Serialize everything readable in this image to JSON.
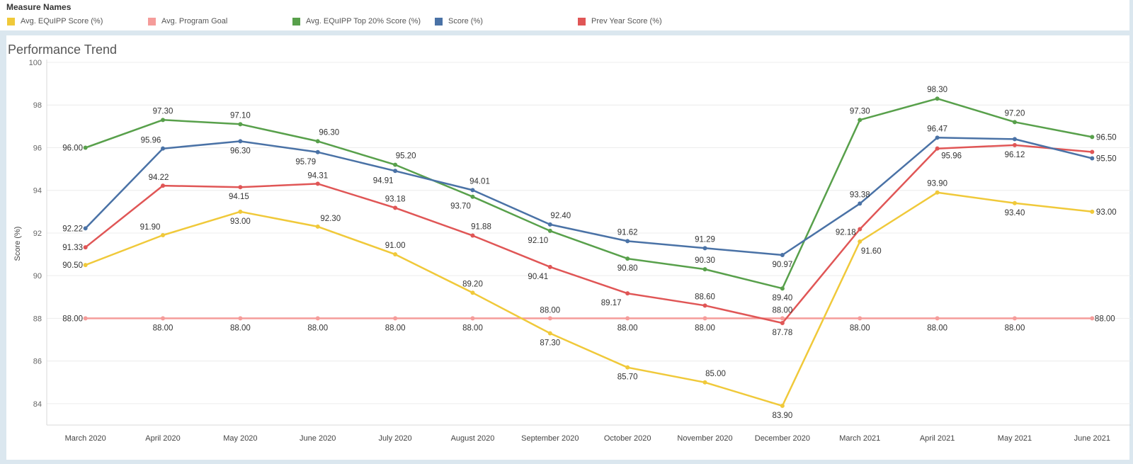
{
  "legend": {
    "title": "Measure Names",
    "items": [
      {
        "label": "Avg. EQuIPP Score (%)",
        "color": "#f0c93a"
      },
      {
        "label": "Avg. Program Goal",
        "color": "#f59c9a"
      },
      {
        "label": "Avg. EQuIPP Top 20% Score (%)",
        "color": "#58a04b"
      },
      {
        "label": "Score (%)",
        "color": "#4a72a6"
      },
      {
        "label": "Prev Year Score (%)",
        "color": "#e05656"
      }
    ]
  },
  "chart_title": "Performance Trend",
  "chart_data": {
    "type": "line",
    "title": "Performance Trend",
    "xlabel": "",
    "ylabel": "Score (%)",
    "ylim": [
      83,
      100
    ],
    "yticks": [
      84,
      86,
      88,
      90,
      92,
      94,
      96,
      98,
      100
    ],
    "grid": true,
    "legend": "top",
    "categories": [
      "March 2020",
      "April 2020",
      "May 2020",
      "June 2020",
      "July 2020",
      "August 2020",
      "September 2020",
      "October 2020",
      "November 2020",
      "December 2020",
      "March 2021",
      "April 2021",
      "May 2021",
      "June 2021"
    ],
    "series": [
      {
        "name": "Avg. Program Goal",
        "color": "#f59c9a",
        "values": [
          88.0,
          88.0,
          88.0,
          88.0,
          88.0,
          88.0,
          88.0,
          88.0,
          88.0,
          88.0,
          88.0,
          88.0,
          88.0,
          88.0
        ],
        "label_values": [
          "88.00",
          "88.00",
          "88.00",
          "88.00",
          "88.00",
          "88.00",
          "88.00",
          "88.00",
          "88.00",
          "88.00",
          "88.00",
          "88.00",
          "88.00",
          "88.00"
        ]
      },
      {
        "name": "Avg. EQuIPP Score (%)",
        "color": "#f0c93a",
        "values": [
          90.5,
          91.9,
          93.0,
          92.3,
          91.0,
          89.2,
          87.3,
          85.7,
          85.0,
          83.9,
          91.6,
          93.9,
          93.4,
          93.0
        ],
        "label_values": [
          "90.50",
          "91.90",
          "93.00",
          "92.30",
          "91.00",
          "89.20",
          "87.30",
          "85.70",
          "85.00",
          "83.90",
          "91.60",
          "93.90",
          "93.40",
          "93.00"
        ]
      },
      {
        "name": "Avg. EQuIPP Top 20% Score (%)",
        "color": "#58a04b",
        "values": [
          96.0,
          97.3,
          97.1,
          96.3,
          95.2,
          93.7,
          92.1,
          90.8,
          90.3,
          89.4,
          97.3,
          98.3,
          97.2,
          96.5
        ],
        "label_values": [
          "96.00",
          "97.30",
          "97.10",
          "96.30",
          "95.20",
          "93.70",
          "92.10",
          "90.80",
          "90.30",
          "89.40",
          "97.30",
          "98.30",
          "97.20",
          "96.50"
        ]
      },
      {
        "name": "Prev Year Score (%)",
        "color": "#e05656",
        "values": [
          91.33,
          94.22,
          94.15,
          94.31,
          93.18,
          91.88,
          90.41,
          89.17,
          88.6,
          87.78,
          92.18,
          95.96,
          96.12,
          95.8
        ],
        "label_values": [
          "91.33",
          "94.22",
          "94.15",
          "94.31",
          "93.18",
          "91.88",
          "90.41",
          "89.17",
          "88.60",
          "87.78",
          "92.18",
          "95.96",
          "96.12",
          ""
        ]
      },
      {
        "name": "Score (%)",
        "color": "#4a72a6",
        "values": [
          92.22,
          95.96,
          96.3,
          95.79,
          94.91,
          94.01,
          92.4,
          91.62,
          91.29,
          90.97,
          93.38,
          96.47,
          96.4,
          95.5
        ],
        "label_values": [
          "92.22",
          "95.96",
          "96.30",
          "95.79",
          "94.91",
          "94.01",
          "92.40",
          "91.62",
          "91.29",
          "90.97",
          "93.38",
          "96.47",
          "",
          "95.50"
        ]
      }
    ]
  }
}
